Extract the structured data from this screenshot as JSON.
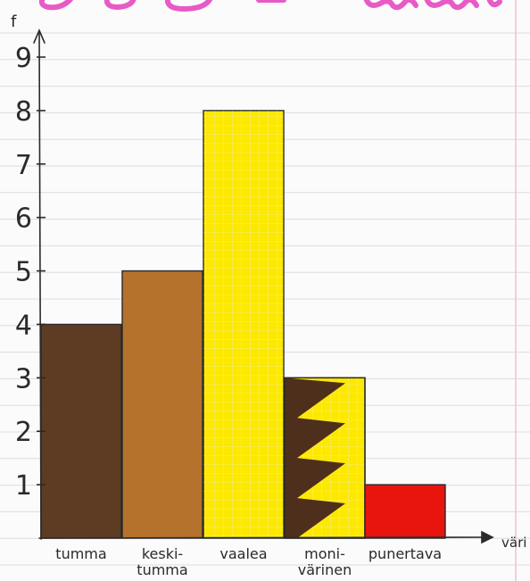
{
  "chart_data": {
    "type": "bar",
    "title": "",
    "ylabel": "f",
    "xlabel": "väri",
    "ylim": [
      0,
      9
    ],
    "yticks": [
      1,
      2,
      3,
      4,
      5,
      6,
      7,
      8,
      9
    ],
    "categories": [
      {
        "line1": "tumma",
        "line2": ""
      },
      {
        "line1": "keski-",
        "line2": "tumma"
      },
      {
        "line1": "vaalea",
        "line2": ""
      },
      {
        "line1": "moni-",
        "line2": "värinen"
      },
      {
        "line1": "punertava",
        "line2": ""
      }
    ],
    "values": [
      4,
      5,
      8,
      3,
      1
    ],
    "colors": [
      "#5e3b23",
      "#b5722d",
      "#fde800",
      "#fde800",
      "#e8140e"
    ],
    "pattern": [
      null,
      null,
      null,
      "dark-brown-zigzag-stripes",
      null
    ],
    "paper": {
      "background": "#fbfbfb",
      "grid_line_color": "#dcdcdc",
      "margin_line_color": "#f2bfd6",
      "heading_scribble_color": "#e85ac6"
    }
  }
}
